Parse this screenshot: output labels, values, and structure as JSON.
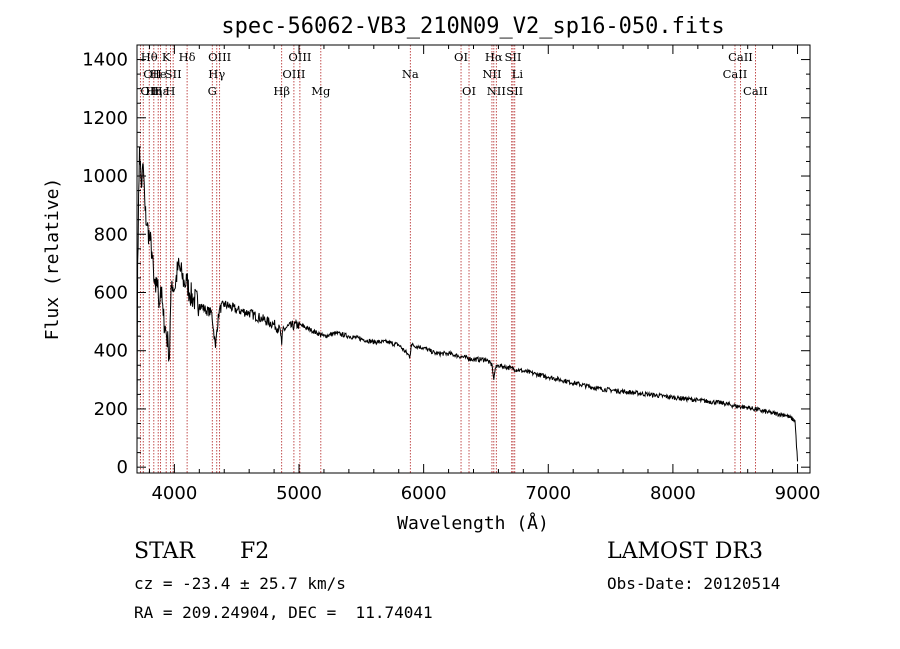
{
  "chart_data": {
    "type": "line",
    "title": "spec-56062-VB3_210N09_V2_sp16-050.fits",
    "xlabel": "Wavelength (Å)",
    "ylabel": "Flux (relative)",
    "xlim": [
      3700,
      9100
    ],
    "ylim": [
      -20,
      1450
    ],
    "xticks": [
      4000,
      5000,
      6000,
      7000,
      8000,
      9000
    ],
    "yticks": [
      0,
      200,
      400,
      600,
      800,
      1000,
      1200,
      1400
    ],
    "line_color": "#000000",
    "marker_color": "#b22222",
    "series": [
      {
        "name": "flux",
        "x": [
          3700,
          3705,
          3720,
          3735,
          3750,
          3765,
          3780,
          3800,
          3820,
          3835,
          3850,
          3860,
          3880,
          3890,
          3910,
          3930,
          3950,
          3960,
          3970,
          3980,
          4000,
          4030,
          4060,
          4080,
          4100,
          4120,
          4150,
          4200,
          4250,
          4300,
          4330,
          4340,
          4360,
          4400,
          4500,
          4600,
          4700,
          4800,
          4850,
          4861,
          4870,
          4900,
          5000,
          5100,
          5200,
          5300,
          5400,
          5500,
          5600,
          5700,
          5800,
          5890,
          5900,
          6000,
          6100,
          6200,
          6300,
          6400,
          6500,
          6550,
          6563,
          6575,
          6600,
          6700,
          6800,
          6900,
          7000,
          7200,
          7400,
          7600,
          7800,
          8000,
          8200,
          8400,
          8500,
          8600,
          8700,
          8800,
          8900,
          8980,
          9000
        ],
        "y": [
          60,
          700,
          1100,
          960,
          1040,
          880,
          830,
          790,
          740,
          640,
          600,
          650,
          560,
          620,
          520,
          470,
          420,
          370,
          560,
          640,
          610,
          690,
          660,
          630,
          640,
          600,
          580,
          560,
          540,
          530,
          410,
          470,
          540,
          560,
          540,
          530,
          510,
          490,
          470,
          420,
          470,
          480,
          490,
          470,
          450,
          460,
          450,
          440,
          430,
          430,
          420,
          380,
          420,
          410,
          390,
          390,
          380,
          370,
          370,
          350,
          300,
          340,
          350,
          340,
          330,
          320,
          310,
          290,
          270,
          260,
          250,
          240,
          230,
          220,
          210,
          205,
          195,
          185,
          180,
          160,
          20
        ]
      }
    ],
    "spectral_lines": [
      {
        "wave": 3727,
        "label": "OII",
        "row": 3,
        "anchor": "start"
      },
      {
        "wave": 3750,
        "label": "OII",
        "row": 2,
        "anchor": "start"
      },
      {
        "wave": 3798,
        "label": "Hθ",
        "row": 1,
        "anchor": "middle"
      },
      {
        "wave": 3835,
        "label": "Hη",
        "row": 3,
        "anchor": "middle"
      },
      {
        "wave": 3870,
        "label": "He",
        "row": 2,
        "anchor": "middle"
      },
      {
        "wave": 3889,
        "label": "Hε",
        "row": 3,
        "anchor": "middle"
      },
      {
        "wave": 3934,
        "label": "K",
        "row": 1,
        "anchor": "middle"
      },
      {
        "wave": 3968,
        "label": "H",
        "row": 3,
        "anchor": "middle"
      },
      {
        "wave": 3990,
        "label": "SII",
        "row": 2,
        "anchor": "middle"
      },
      {
        "wave": 4102,
        "label": "Hδ",
        "row": 1,
        "anchor": "middle"
      },
      {
        "wave": 4304,
        "label": "G",
        "row": 3,
        "anchor": "middle"
      },
      {
        "wave": 4340,
        "label": "Hγ",
        "row": 2,
        "anchor": "middle"
      },
      {
        "wave": 4363,
        "label": "OIII",
        "row": 1,
        "anchor": "middle"
      },
      {
        "wave": 4861,
        "label": "Hβ",
        "row": 3,
        "anchor": "middle"
      },
      {
        "wave": 4959,
        "label": "OIII",
        "row": 2,
        "anchor": "middle"
      },
      {
        "wave": 5007,
        "label": "OIII",
        "row": 1,
        "anchor": "middle"
      },
      {
        "wave": 5175,
        "label": "Mg",
        "row": 3,
        "anchor": "middle"
      },
      {
        "wave": 5893,
        "label": "Na",
        "row": 2,
        "anchor": "middle"
      },
      {
        "wave": 6300,
        "label": "OI",
        "row": 1,
        "anchor": "middle"
      },
      {
        "wave": 6364,
        "label": "OI",
        "row": 3,
        "anchor": "middle"
      },
      {
        "wave": 6548,
        "label": "NII",
        "row": 2,
        "anchor": "middle"
      },
      {
        "wave": 6563,
        "label": "Hα",
        "row": 1,
        "anchor": "middle"
      },
      {
        "wave": 6583,
        "label": "NII",
        "row": 3,
        "anchor": "middle"
      },
      {
        "wave": 6707,
        "label": "Li",
        "row": 2,
        "anchor": "start"
      },
      {
        "wave": 6717,
        "label": "SII",
        "row": 1,
        "anchor": "middle"
      },
      {
        "wave": 6731,
        "label": "SII",
        "row": 3,
        "anchor": "middle"
      },
      {
        "wave": 8498,
        "label": "CaII",
        "row": 2,
        "anchor": "middle"
      },
      {
        "wave": 8542,
        "label": "CaII",
        "row": 1,
        "anchor": "middle"
      },
      {
        "wave": 8662,
        "label": "CaII",
        "row": 3,
        "anchor": "middle"
      }
    ]
  },
  "info": {
    "object_class": "STAR",
    "subclass": "F2",
    "survey": "LAMOST DR3",
    "cz": "cz = -23.4 ± 25.7 km/s",
    "obs_date": "Obs-Date: 20120514",
    "coords": "RA = 209.24904, DEC =  11.74041"
  }
}
